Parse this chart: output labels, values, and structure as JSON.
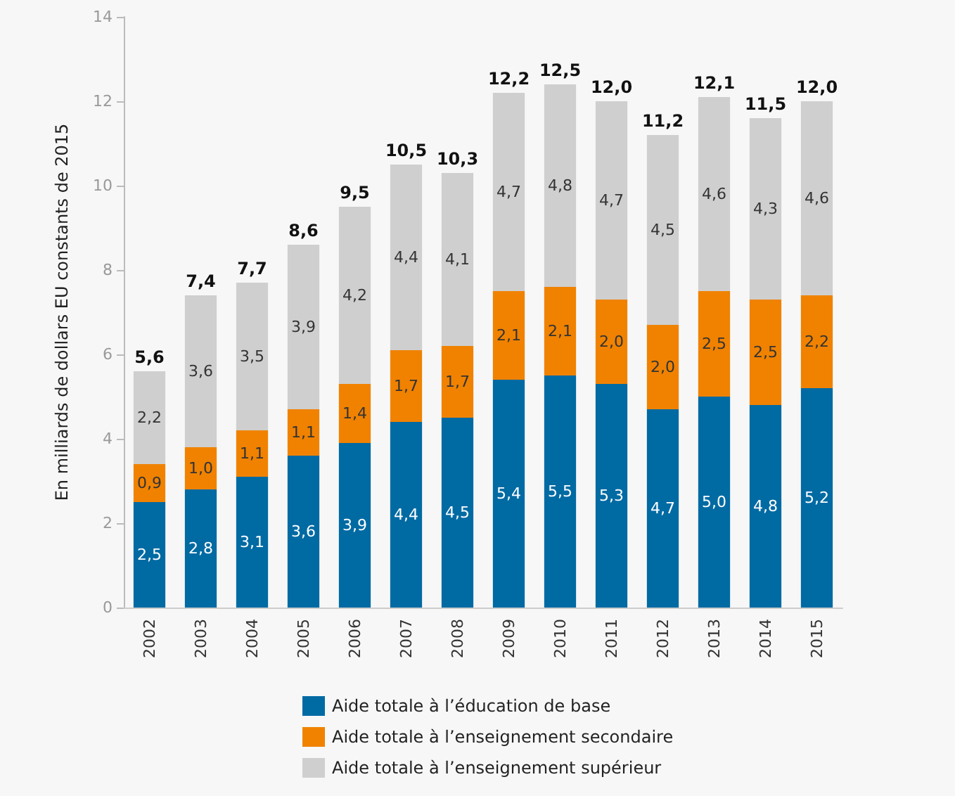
{
  "chart_data": {
    "type": "bar",
    "stacked": true,
    "ylabel": "En milliards de dollars EU constants de 2015",
    "categories": [
      "2002",
      "2003",
      "2004",
      "2005",
      "2006",
      "2007",
      "2008",
      "2009",
      "2010",
      "2011",
      "2012",
      "2013",
      "2014",
      "2015"
    ],
    "series": [
      {
        "name": "Aide totale à l’éducation de base",
        "color": "#006aa3",
        "values": [
          2.5,
          2.8,
          3.1,
          3.6,
          3.9,
          4.4,
          4.5,
          5.4,
          5.5,
          5.3,
          4.7,
          5.0,
          4.8,
          5.2
        ],
        "value_labels": [
          "2,5",
          "2,8",
          "3,1",
          "3,6",
          "3,9",
          "4,4",
          "4,5",
          "5,4",
          "5,5",
          "5,3",
          "4,7",
          "5,0",
          "4,8",
          "5,2"
        ]
      },
      {
        "name": "Aide totale à l’enseignement secondaire",
        "color": "#f08200",
        "values": [
          0.9,
          1.0,
          1.1,
          1.1,
          1.4,
          1.7,
          1.7,
          2.1,
          2.1,
          2.0,
          2.0,
          2.5,
          2.5,
          2.2
        ],
        "value_labels": [
          "0,9",
          "1,0",
          "1,1",
          "1,1",
          "1,4",
          "1,7",
          "1,7",
          "2,1",
          "2,1",
          "2,0",
          "2,0",
          "2,5",
          "2,5",
          "2,2"
        ]
      },
      {
        "name": "Aide totale à l’enseignement supérieur",
        "color": "#cfcfcf",
        "values": [
          2.2,
          3.6,
          3.5,
          3.9,
          4.2,
          4.4,
          4.1,
          4.7,
          4.8,
          4.7,
          4.5,
          4.6,
          4.3,
          4.6
        ],
        "value_labels": [
          "2,2",
          "3,6",
          "3,5",
          "3,9",
          "4,2",
          "4,4",
          "4,1",
          "4,7",
          "4,8",
          "4,7",
          "4,5",
          "4,6",
          "4,3",
          "4,6"
        ]
      }
    ],
    "totals": [
      "5,6",
      "7,4",
      "7,7",
      "8,6",
      "9,5",
      "10,5",
      "10,3",
      "12,2",
      "12,5",
      "12,0",
      "11,2",
      "12,1",
      "11,5",
      "12,0"
    ],
    "ylim": [
      0,
      14
    ],
    "yticks": [
      0,
      2,
      4,
      6,
      8,
      10,
      12,
      14
    ],
    "grid": false,
    "legend": "bottom"
  }
}
